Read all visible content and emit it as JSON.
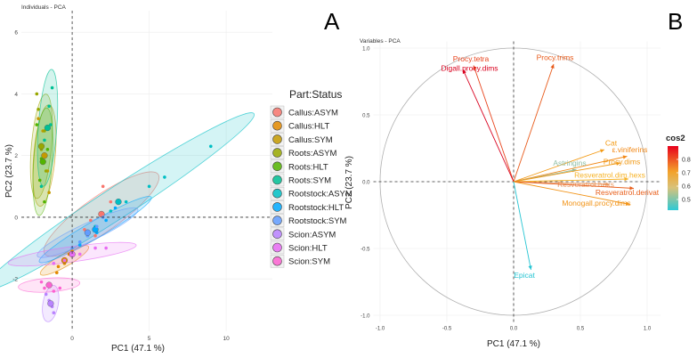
{
  "panelA": {
    "letter": "A",
    "title": "Individuals - PCA",
    "xlabel": "PC1 (47.1 %)",
    "ylabel": "PC2 (23.7 %)",
    "xticks": [
      "0",
      "5",
      "10"
    ],
    "yticks": [
      "6",
      "4",
      "2",
      "0",
      "-2"
    ],
    "legend_title": "Part:Status",
    "groups": [
      {
        "name": "Callus:ASYM",
        "color": "#f8766d",
        "cx": 1.9,
        "cy": 0.1,
        "rx": 4.5,
        "ry": 1.15,
        "angle": 35,
        "points": [
          [
            1.2,
            -0.1
          ],
          [
            2.5,
            0.5
          ],
          [
            0.8,
            -0.4
          ],
          [
            2.0,
            1.0
          ],
          [
            1.5,
            -0.6
          ]
        ]
      },
      {
        "name": "Callus:HLT",
        "color": "#e38900",
        "cx": -0.5,
        "cy": -1.4,
        "rx": 1.8,
        "ry": 0.4,
        "angle": 30,
        "points": [
          [
            -0.9,
            -1.6
          ],
          [
            -0.2,
            -1.2
          ],
          [
            -1.0,
            -1.8
          ],
          [
            0.0,
            -1.1
          ],
          [
            -0.5,
            -1.5
          ]
        ]
      },
      {
        "name": "Callus:SYM",
        "color": "#c49a00",
        "cx": -1.8,
        "cy": 2.0,
        "rx": 3.3,
        "ry": 0.7,
        "angle": 85,
        "points": [
          [
            -2.0,
            2.3
          ],
          [
            -1.6,
            1.5
          ],
          [
            -2.2,
            3.2
          ],
          [
            -1.5,
            0.8
          ],
          [
            -1.9,
            2.8
          ]
        ]
      },
      {
        "name": "Roots:ASYM",
        "color": "#99a800",
        "cx": -2.0,
        "cy": 2.3,
        "rx": 3.4,
        "ry": 0.65,
        "angle": 85,
        "points": [
          [
            -2.2,
            3.5
          ],
          [
            -1.8,
            2.8
          ],
          [
            -2.3,
            4.0
          ],
          [
            -1.7,
            1.5
          ],
          [
            -2.0,
            2.2
          ]
        ]
      },
      {
        "name": "Roots:HLT",
        "color": "#53b400",
        "cx": -1.9,
        "cy": 1.8,
        "rx": 3.5,
        "ry": 0.6,
        "angle": 86,
        "points": [
          [
            -2.1,
            1.2
          ],
          [
            -1.6,
            2.2
          ],
          [
            -2.3,
            3.0
          ],
          [
            -1.8,
            0.5
          ],
          [
            -2.0,
            1.9
          ]
        ]
      },
      {
        "name": "Roots:SYM",
        "color": "#00c094",
        "cx": -1.6,
        "cy": 2.9,
        "rx": 3.8,
        "ry": 0.6,
        "angle": 86,
        "points": [
          [
            -1.5,
            3.6
          ],
          [
            -1.8,
            2.5
          ],
          [
            -1.3,
            4.2
          ],
          [
            -2.0,
            1.0
          ],
          [
            -1.4,
            3.0
          ]
        ]
      },
      {
        "name": "Rootstock:ASYM",
        "color": "#00bfc4",
        "cx": 3.0,
        "cy": 0.5,
        "rx": 10.5,
        "ry": 1.0,
        "angle": 33,
        "points": [
          [
            3.5,
            0.5
          ],
          [
            6.0,
            1.3
          ],
          [
            1.5,
            -0.3
          ],
          [
            5.0,
            1.0
          ],
          [
            9.0,
            2.3
          ],
          [
            2.5,
            0.2
          ]
        ]
      },
      {
        "name": "Rootstock:HLT",
        "color": "#00a9ff",
        "cx": 1.5,
        "cy": -0.4,
        "rx": 4.2,
        "ry": 0.55,
        "angle": 30,
        "points": [
          [
            1.0,
            -0.6
          ],
          [
            2.2,
            -0.1
          ],
          [
            0.5,
            -0.9
          ],
          [
            2.8,
            0.3
          ],
          [
            1.6,
            -0.5
          ]
        ]
      },
      {
        "name": "Rootstock:SYM",
        "color": "#619cff",
        "cx": 1.0,
        "cy": -0.5,
        "rx": 3.6,
        "ry": 0.6,
        "angle": 25,
        "points": [
          [
            0.5,
            -0.8
          ],
          [
            1.6,
            -0.3
          ],
          [
            0.0,
            -1.0
          ],
          [
            2.0,
            0.0
          ],
          [
            1.0,
            -0.6
          ]
        ]
      },
      {
        "name": "Scion:ASYM",
        "color": "#b983ff",
        "cx": -1.4,
        "cy": -2.8,
        "rx": 1.2,
        "ry": 0.5,
        "angle": 80,
        "points": [
          [
            -1.5,
            -2.7
          ],
          [
            -1.2,
            -3.1
          ],
          [
            -1.7,
            -2.5
          ],
          [
            -1.3,
            -2.9
          ]
        ]
      },
      {
        "name": "Scion:HLT",
        "color": "#e76bf3",
        "cx": 0.0,
        "cy": -1.2,
        "rx": 4.2,
        "ry": 0.5,
        "angle": 8,
        "points": [
          [
            0.5,
            -1.2
          ],
          [
            1.5,
            -1.0
          ],
          [
            -0.5,
            -1.4
          ],
          [
            2.2,
            -1.0
          ],
          [
            -1.2,
            -1.5
          ]
        ]
      },
      {
        "name": "Scion:SYM",
        "color": "#fd61d1",
        "cx": -1.5,
        "cy": -2.2,
        "rx": 2.0,
        "ry": 0.45,
        "angle": 4,
        "points": [
          [
            -1.4,
            -2.2
          ],
          [
            -0.8,
            -2.3
          ],
          [
            -2.0,
            -2.1
          ],
          [
            -1.2,
            -2.4
          ],
          [
            -1.8,
            -2.3
          ]
        ]
      }
    ]
  },
  "panelB": {
    "letter": "B",
    "title": "Variables - PCA",
    "xlabel": "PC1 (47.1 %)",
    "ylabel": "PC2 (23.7 %)",
    "xticks": [
      "-1.0",
      "-0.5",
      "0.0",
      "0.5",
      "1.0"
    ],
    "yticks": [
      "1.0",
      "0.5",
      "0.0",
      "-0.5",
      "-1.0"
    ],
    "legend_title": "cos2",
    "legend_ticks": [
      "0.8",
      "0.7",
      "0.6",
      "0.5"
    ],
    "variables": [
      {
        "name": "Procy.tetra",
        "x": -0.3,
        "y": 0.87,
        "color": "#e8441d",
        "lx": -0.32,
        "ly": 0.9
      },
      {
        "name": "Digall.procy.dims",
        "x": -0.38,
        "y": 0.84,
        "color": "#d9001e",
        "lx": -0.33,
        "ly": 0.83
      },
      {
        "name": "Procy.trims",
        "x": 0.3,
        "y": 0.88,
        "color": "#e85a1a",
        "lx": 0.31,
        "ly": 0.91
      },
      {
        "name": "Cat",
        "x": 0.68,
        "y": 0.24,
        "color": "#f39a14",
        "lx": 0.73,
        "ly": 0.27
      },
      {
        "name": "ε.viniferins",
        "x": 0.85,
        "y": 0.19,
        "color": "#f28816",
        "lx": 0.87,
        "ly": 0.22
      },
      {
        "name": "Astringins",
        "x": 0.47,
        "y": 0.09,
        "color": "#8fbfa5",
        "lx": 0.42,
        "ly": 0.12
      },
      {
        "name": "Procy.dims",
        "x": 0.8,
        "y": 0.14,
        "color": "#f09a18",
        "lx": 0.81,
        "ly": 0.13
      },
      {
        "name": "Resveratrol.dim.hexs",
        "x": 0.86,
        "y": 0.02,
        "color": "#f7b224",
        "lx": 0.72,
        "ly": 0.03
      },
      {
        "name": "Resveratrol.hexs",
        "x": 0.72,
        "y": -0.02,
        "color": "#e89860",
        "lx": 0.54,
        "ly": -0.04
      },
      {
        "name": "Resveratrol.derivat",
        "x": 0.9,
        "y": -0.05,
        "color": "#e85e1a",
        "lx": 0.85,
        "ly": -0.1
      },
      {
        "name": "Monogall.procy.dims",
        "x": 0.87,
        "y": -0.17,
        "color": "#f29418",
        "lx": 0.62,
        "ly": -0.18
      },
      {
        "name": "Epicat",
        "x": 0.13,
        "y": -0.66,
        "color": "#27c5d3",
        "lx": 0.08,
        "ly": -0.72
      }
    ]
  },
  "chart_data": [
    {
      "type": "scatter",
      "title": "Individuals - PCA",
      "xlabel": "PC1 (47.1 %)",
      "ylabel": "PC2 (23.7 %)",
      "xlim": [
        -3.3,
        13
      ],
      "ylim": [
        -3.7,
        6.7
      ],
      "legend": [
        "Callus:ASYM",
        "Callus:HLT",
        "Callus:SYM",
        "Roots:ASYM",
        "Roots:HLT",
        "Roots:SYM",
        "Rootstock:ASYM",
        "Rootstock:HLT",
        "Rootstock:SYM",
        "Scion:ASYM",
        "Scion:HLT",
        "Scion:SYM"
      ]
    },
    {
      "type": "scatter",
      "title": "Variables - PCA",
      "xlabel": "PC1 (47.1 %)",
      "ylabel": "PC2 (23.7 %)",
      "xlim": [
        -1.05,
        1.1
      ],
      "ylim": [
        -1.05,
        1.05
      ],
      "legend": [
        "cos2"
      ]
    }
  ]
}
